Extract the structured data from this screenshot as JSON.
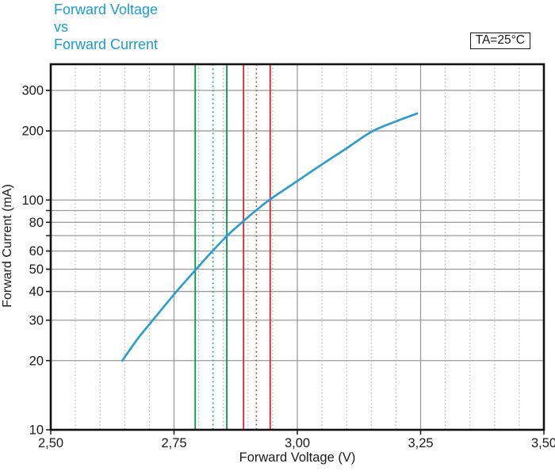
{
  "title": {
    "line1": "Forward Voltage",
    "line2": "vs",
    "line3": "Forward Current",
    "color": "#1d9bd5"
  },
  "conditions": {
    "ta_label": "TA=25°C"
  },
  "chart_data": {
    "type": "line",
    "title": "Forward Voltage vs Forward Current",
    "xlabel": "Forward Voltage (V)",
    "ylabel": "Forward Current (mA)",
    "x_scale": "linear",
    "y_scale": "log",
    "xlim": [
      2.5,
      3.5
    ],
    "ylim": [
      10,
      390
    ],
    "grid": "on",
    "legend": "none",
    "x_major_ticks": [
      2.5,
      2.75,
      3.0,
      3.25,
      3.5
    ],
    "x_tick_labels": [
      "2,50",
      "2,75",
      "3,00",
      "3,25",
      "3,50"
    ],
    "x_minor_step": 0.05,
    "y_gridlines": [
      20,
      30,
      40,
      50,
      60,
      70,
      80,
      90,
      100,
      200,
      300
    ],
    "y_tick_labels": [
      {
        "value": 300,
        "label": "300"
      },
      {
        "value": 200,
        "label": "200"
      },
      {
        "value": 100,
        "label": "100"
      },
      {
        "value": 80,
        "label": "80"
      },
      {
        "value": 60,
        "label": "60"
      },
      {
        "value": 50,
        "label": "50"
      },
      {
        "value": 40,
        "label": "40"
      },
      {
        "value": 30,
        "label": "30"
      },
      {
        "value": 20,
        "label": "20"
      },
      {
        "value": 10,
        "label": "10"
      }
    ],
    "colors": {
      "curve": "#2b9cd1",
      "grid_solid": "#9b9b9b",
      "grid_dotted": "#a8a8a8",
      "frame": "#111111"
    },
    "series": [
      {
        "name": "forward-current-vs-forward-voltage",
        "color": "#2b9cd1",
        "points": [
          [
            2.645,
            20
          ],
          [
            2.677,
            25
          ],
          [
            2.707,
            30
          ],
          [
            2.755,
            40
          ],
          [
            2.795,
            50
          ],
          [
            2.828,
            60
          ],
          [
            2.858,
            70
          ],
          [
            2.888,
            80
          ],
          [
            2.916,
            90
          ],
          [
            2.943,
            100
          ],
          [
            3.0,
            121
          ],
          [
            3.05,
            143
          ],
          [
            3.1,
            168
          ],
          [
            3.15,
            198
          ],
          [
            3.2,
            220
          ],
          [
            3.243,
            238
          ]
        ]
      }
    ],
    "marker_lines": [
      {
        "v": 2.793,
        "color": "#009a49",
        "style": "solid"
      },
      {
        "v": 2.829,
        "color": "#00a27d",
        "style": "dotted"
      },
      {
        "v": 2.857,
        "color": "#009a49",
        "style": "solid"
      },
      {
        "v": 2.891,
        "color": "#d2262c",
        "style": "solid"
      },
      {
        "v": 2.917,
        "color": "#a8403f",
        "style": "dotted"
      },
      {
        "v": 2.945,
        "color": "#d2262c",
        "style": "solid"
      }
    ]
  }
}
